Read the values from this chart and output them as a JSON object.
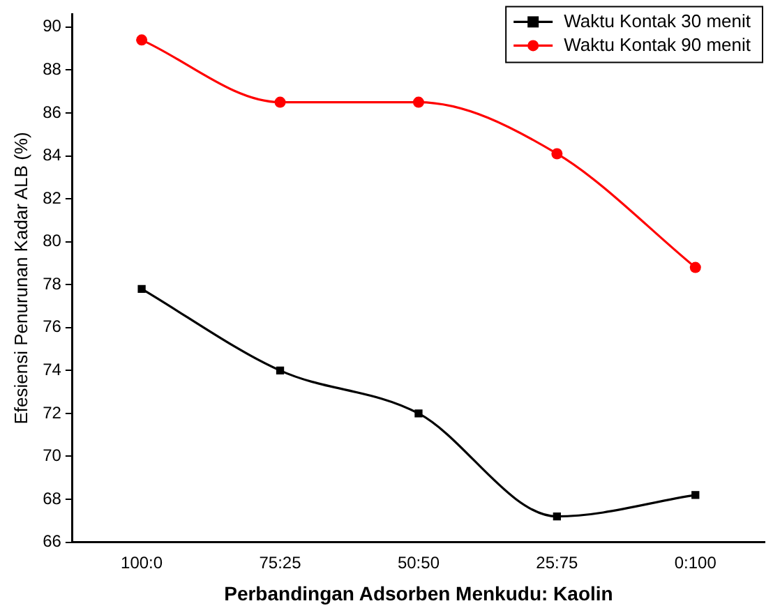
{
  "chart_data": {
    "type": "line",
    "xlabel": "Perbandingan Adsorben Menkudu: Kaolin",
    "ylabel": "Efesiensi Penurunan Kadar ALB (%)",
    "categories": [
      "100:0",
      "75:25",
      "50:50",
      "25:75",
      "0:100"
    ],
    "series": [
      {
        "name": "Waktu Kontak 30 menit",
        "color": "#000000",
        "marker": "square",
        "values": [
          77.8,
          74.0,
          72.0,
          67.2,
          68.2
        ]
      },
      {
        "name": "Waktu Kontak 90 menit",
        "color": "#ff0000",
        "marker": "circle",
        "values": [
          89.4,
          86.5,
          86.5,
          84.1,
          78.8
        ]
      }
    ],
    "ylim": [
      66,
      90.6
    ],
    "yticks": [
      66,
      68,
      70,
      72,
      74,
      76,
      78,
      80,
      82,
      84,
      86,
      88,
      90
    ],
    "grid": false,
    "legend": "top right",
    "line_style": "solid"
  }
}
